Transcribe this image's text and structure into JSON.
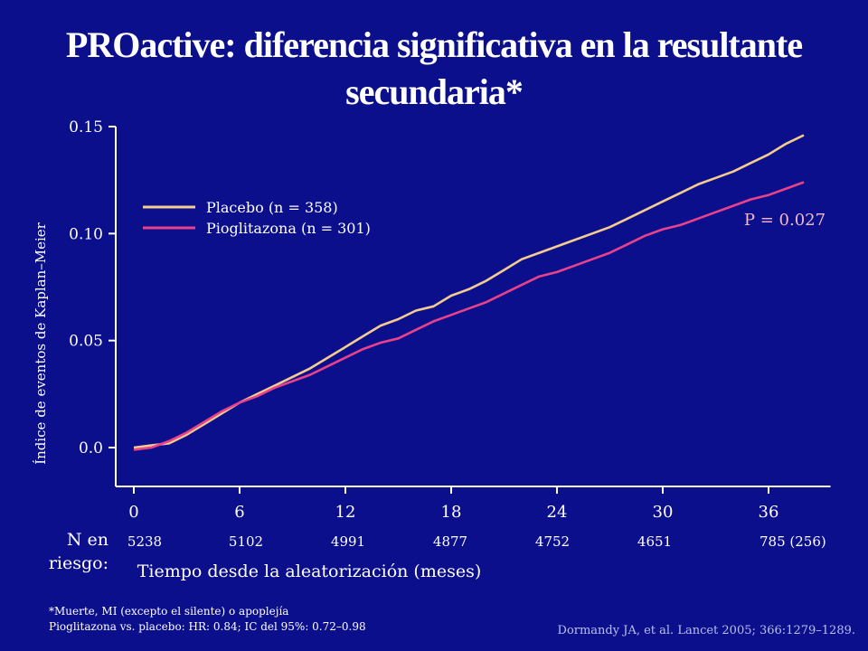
{
  "slide": {
    "title": "PROactive: diferencia significativa en la resultante secundaria*",
    "n_at_risk_label_line1": "N en",
    "n_at_risk_label_line2": "riesgo:",
    "footnote_line1": "*Muerte, MI (excepto el silente) o apoplejía",
    "footnote_line2": "Pioglitazona vs. placebo: HR: 0.84; IC del 95%: 0.72–0.98",
    "citation": "Dormandy JA, et al. Lancet 2005; 366:1279–1289."
  },
  "chart_data": {
    "type": "line",
    "title": "PROactive: diferencia significativa en la resultante secundaria*",
    "xlabel": "Tiempo desde la aleatorización (meses)",
    "ylabel": "Índice de eventos de Kaplan–Meier",
    "xlim": [
      0,
      39
    ],
    "ylim": [
      -0.018,
      0.15
    ],
    "x_ticks": [
      0,
      6,
      12,
      18,
      24,
      30,
      36
    ],
    "x_tick_labels": [
      "0",
      "6",
      "12",
      "18",
      "24",
      "30",
      "36"
    ],
    "y_ticks": [
      0.0,
      0.05,
      0.1,
      0.15
    ],
    "y_tick_labels": [
      "0.0",
      "0.05",
      "0.10",
      "0.15"
    ],
    "annotation": "P = 0.027",
    "legend_position": "top-left",
    "n_at_risk": [
      "5238",
      "5102",
      "4991",
      "4877",
      "4752",
      "4651",
      "785 (256)"
    ],
    "colors": {
      "placebo": "#f5cc8f",
      "pioglitazona": "#e8428a",
      "background": "#0b0f8c",
      "axis": "#ffffff"
    },
    "series": [
      {
        "name": "Placebo (n = 358)",
        "x": [
          0,
          1,
          2,
          3,
          4,
          5,
          6,
          7,
          8,
          9,
          10,
          11,
          12,
          13,
          14,
          15,
          16,
          17,
          18,
          19,
          20,
          21,
          22,
          23,
          24,
          25,
          26,
          27,
          28,
          29,
          30,
          31,
          32,
          33,
          34,
          35,
          36,
          37,
          38
        ],
        "y": [
          0.0,
          0.001,
          0.002,
          0.006,
          0.011,
          0.016,
          0.021,
          0.025,
          0.029,
          0.033,
          0.037,
          0.042,
          0.047,
          0.052,
          0.057,
          0.06,
          0.064,
          0.066,
          0.071,
          0.074,
          0.078,
          0.083,
          0.088,
          0.091,
          0.094,
          0.097,
          0.1,
          0.103,
          0.107,
          0.111,
          0.115,
          0.119,
          0.123,
          0.126,
          0.129,
          0.133,
          0.137,
          0.142,
          0.146
        ]
      },
      {
        "name": "Pioglitazona (n = 301)",
        "x": [
          0,
          1,
          2,
          3,
          4,
          5,
          6,
          7,
          8,
          9,
          10,
          11,
          12,
          13,
          14,
          15,
          16,
          17,
          18,
          19,
          20,
          21,
          22,
          23,
          24,
          25,
          26,
          27,
          28,
          29,
          30,
          31,
          32,
          33,
          34,
          35,
          36,
          37,
          38
        ],
        "y": [
          -0.001,
          0.0,
          0.003,
          0.007,
          0.012,
          0.017,
          0.021,
          0.024,
          0.028,
          0.031,
          0.034,
          0.038,
          0.042,
          0.046,
          0.049,
          0.051,
          0.055,
          0.059,
          0.062,
          0.065,
          0.068,
          0.072,
          0.076,
          0.08,
          0.082,
          0.085,
          0.088,
          0.091,
          0.095,
          0.099,
          0.102,
          0.104,
          0.107,
          0.11,
          0.113,
          0.116,
          0.118,
          0.121,
          0.124
        ]
      }
    ]
  }
}
